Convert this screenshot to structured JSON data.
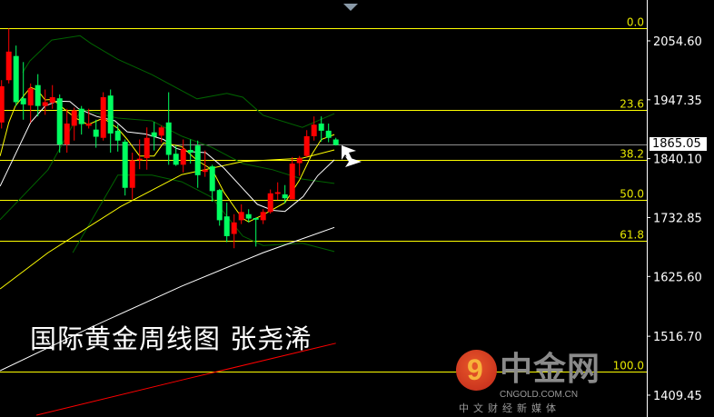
{
  "chart_data": {
    "type": "candlestick",
    "title": "",
    "caption": "国际黄金周线图  张尧浠",
    "y_axis": {
      "ticks": [
        "2054.60",
        "1947.35",
        "1840.10",
        "1732.85",
        "1625.60",
        "1516.70",
        "1409.45"
      ],
      "range": [
        1395,
        2129
      ]
    },
    "current_price": "1865.05",
    "colors": {
      "up": "#ff0000",
      "down": "#00ff60",
      "background": "#000000",
      "fib": "#ffff00",
      "bands": "#006400",
      "ma_fast": "#ffff00",
      "ma_mid": "#ffffff",
      "ma_slow_yellow": "#ffff00",
      "ma_slow_white": "#ffffff",
      "ma_long": "#ff0000"
    },
    "fibonacci": {
      "high": 2077.7,
      "low": 1452.4,
      "levels": [
        {
          "label": "0.0",
          "price": 2077.7
        },
        {
          "label": "23.6",
          "price": 1928.8
        },
        {
          "label": "38.2",
          "price": 1837.8
        },
        {
          "label": "50.0",
          "price": 1765.1
        },
        {
          "label": "61.8",
          "price": 1690.6
        },
        {
          "label": "100.0",
          "price": 1452.4
        }
      ]
    },
    "candles": [
      [
        1906,
        1983,
        1895,
        1972
      ],
      [
        1983,
        2077,
        1977,
        2035
      ],
      [
        2027,
        2046,
        1936,
        1943
      ],
      [
        1950,
        2016,
        1911,
        1939
      ],
      [
        1937,
        1977,
        1906,
        1968
      ],
      [
        1974,
        1994,
        1917,
        1936
      ],
      [
        1936,
        1966,
        1920,
        1943
      ],
      [
        1942,
        1974,
        1931,
        1952
      ],
      [
        1950,
        1957,
        1851,
        1866
      ],
      [
        1866,
        1931,
        1851,
        1904
      ],
      [
        1900,
        1933,
        1873,
        1928
      ],
      [
        1931,
        1936,
        1884,
        1903
      ],
      [
        1900,
        1931,
        1895,
        1904
      ],
      [
        1893,
        1911,
        1860,
        1880
      ],
      [
        1878,
        1961,
        1873,
        1952
      ],
      [
        1955,
        1966,
        1851,
        1886
      ],
      [
        1891,
        1902,
        1853,
        1873
      ],
      [
        1871,
        1875,
        1773,
        1787
      ],
      [
        1787,
        1851,
        1766,
        1837
      ],
      [
        1839,
        1875,
        1821,
        1840
      ],
      [
        1841,
        1897,
        1820,
        1878
      ],
      [
        1888,
        1907,
        1855,
        1880
      ],
      [
        1882,
        1900,
        1870,
        1897
      ],
      [
        1906,
        1961,
        1829,
        1847
      ],
      [
        1849,
        1864,
        1827,
        1829
      ],
      [
        1829,
        1875,
        1815,
        1858
      ],
      [
        1856,
        1875,
        1831,
        1851
      ],
      [
        1864,
        1873,
        1787,
        1810
      ],
      [
        1816,
        1855,
        1807,
        1820
      ],
      [
        1826,
        1829,
        1762,
        1781
      ],
      [
        1783,
        1785,
        1718,
        1728
      ],
      [
        1735,
        1760,
        1688,
        1699
      ],
      [
        1703,
        1739,
        1677,
        1724
      ],
      [
        1728,
        1757,
        1721,
        1743
      ],
      [
        1739,
        1748,
        1724,
        1731
      ],
      [
        1732,
        1733,
        1680,
        1729
      ],
      [
        1728,
        1748,
        1721,
        1743
      ],
      [
        1743,
        1784,
        1740,
        1777
      ],
      [
        1776,
        1797,
        1765,
        1779
      ],
      [
        1775,
        1792,
        1759,
        1768
      ],
      [
        1766,
        1843,
        1766,
        1831
      ],
      [
        1832,
        1845,
        1809,
        1841
      ],
      [
        1845,
        1892,
        1843,
        1881
      ],
      [
        1881,
        1917,
        1873,
        1902
      ],
      [
        1904,
        1917,
        1871,
        1891
      ],
      [
        1891,
        1904,
        1870,
        1878
      ],
      [
        1875,
        1878,
        1864,
        1865.05
      ]
    ],
    "candle_format": [
      "open",
      "high",
      "low",
      "close"
    ],
    "lines": [
      {
        "id": "bollinger-upper",
        "color": "#006400",
        "points": [
          [
            3.9,
            1997
          ],
          [
            4.9,
            2018
          ],
          [
            7.9,
            2056
          ],
          [
            11.8,
            2064
          ],
          [
            13.3,
            2050
          ],
          [
            17.0,
            2021
          ],
          [
            21.7,
            1993
          ],
          [
            27.9,
            1949
          ],
          [
            32.0,
            1959
          ],
          [
            34.2,
            1952
          ],
          [
            37.0,
            1919
          ],
          [
            42.4,
            1897
          ],
          [
            46.8,
            1922
          ]
        ]
      },
      {
        "id": "bollinger-middle",
        "color": "#006400",
        "points": [
          [
            0.8,
            1729
          ],
          [
            7.4,
            1820
          ],
          [
            12.0,
            1930
          ],
          [
            17.0,
            1914
          ],
          [
            21.7,
            1909
          ],
          [
            25.8,
            1881
          ],
          [
            29.9,
            1861
          ],
          [
            34.2,
            1831
          ],
          [
            38.3,
            1820
          ],
          [
            42.4,
            1803
          ],
          [
            46.8,
            1795
          ]
        ]
      },
      {
        "id": "bollinger-lower",
        "color": "#006400",
        "points": [
          [
            10.8,
            1669
          ],
          [
            17.0,
            1810
          ],
          [
            21.7,
            1810
          ],
          [
            25.8,
            1798
          ],
          [
            29.9,
            1770
          ],
          [
            34.2,
            1699
          ],
          [
            37.0,
            1682
          ],
          [
            42.4,
            1686
          ],
          [
            46.8,
            1671
          ]
        ]
      },
      {
        "id": "ma-slow-yellow",
        "color": "#ffff00",
        "points": [
          [
            0.8,
            1603
          ],
          [
            7.4,
            1669
          ],
          [
            17.4,
            1753
          ],
          [
            25.8,
            1811
          ],
          [
            34.2,
            1835
          ],
          [
            42.4,
            1841
          ],
          [
            46.8,
            1856
          ]
        ]
      },
      {
        "id": "ma-slow-white",
        "color": "#ffffff",
        "points": [
          [
            0.8,
            1454
          ],
          [
            13.3,
            1533
          ],
          [
            25.8,
            1608
          ],
          [
            37.0,
            1669
          ],
          [
            46.8,
            1715
          ]
        ]
      },
      {
        "id": "ma-long-red",
        "color": "#ff0000",
        "points": [
          [
            5.8,
            1373
          ],
          [
            25.8,
            1437
          ],
          [
            47.0,
            1504
          ]
        ]
      },
      {
        "id": "ma-mid-white",
        "color": "#ffffff",
        "points": [
          [
            0.8,
            1790
          ],
          [
            3.3,
            1859
          ],
          [
            5.0,
            1906
          ],
          [
            7.0,
            1936
          ],
          [
            8.7,
            1945
          ],
          [
            10.4,
            1944
          ],
          [
            11.6,
            1931
          ],
          [
            14.1,
            1917
          ],
          [
            16.6,
            1909
          ],
          [
            18.3,
            1889
          ],
          [
            20.8,
            1885
          ],
          [
            23.3,
            1875
          ],
          [
            25.0,
            1859
          ],
          [
            26.6,
            1853
          ],
          [
            29.1,
            1851
          ],
          [
            31.6,
            1823
          ],
          [
            34.1,
            1787
          ],
          [
            36.2,
            1757
          ],
          [
            38.3,
            1746
          ],
          [
            40.0,
            1744
          ],
          [
            42.5,
            1771
          ],
          [
            44.5,
            1809
          ],
          [
            46.8,
            1838
          ]
        ]
      },
      {
        "id": "ma-fast-yellow",
        "color": "#ffff00",
        "points": [
          [
            0.8,
            1845
          ],
          [
            2.0,
            1906
          ],
          [
            2.9,
            1936
          ],
          [
            5.0,
            1970
          ],
          [
            6.0,
            1964
          ],
          [
            7.0,
            1947
          ],
          [
            8.1,
            1948
          ],
          [
            9.1,
            1936
          ],
          [
            11.2,
            1914
          ],
          [
            12.9,
            1902
          ],
          [
            15.0,
            1914
          ],
          [
            17.0,
            1895
          ],
          [
            18.3,
            1875
          ],
          [
            20.0,
            1845
          ],
          [
            22.0,
            1845
          ],
          [
            23.3,
            1869
          ],
          [
            25.8,
            1862
          ],
          [
            27.9,
            1837
          ],
          [
            30.0,
            1820
          ],
          [
            31.6,
            1779
          ],
          [
            34.1,
            1732
          ],
          [
            35.0,
            1725
          ],
          [
            37.0,
            1738
          ],
          [
            40.0,
            1760
          ],
          [
            42.0,
            1801
          ],
          [
            43.7,
            1848
          ],
          [
            45.0,
            1875
          ],
          [
            46.8,
            1884
          ]
        ]
      }
    ]
  },
  "watermark": {
    "brand": "中金网",
    "domain": "CNGOLD.COM.CN",
    "slogan": "中文财经新媒体"
  }
}
